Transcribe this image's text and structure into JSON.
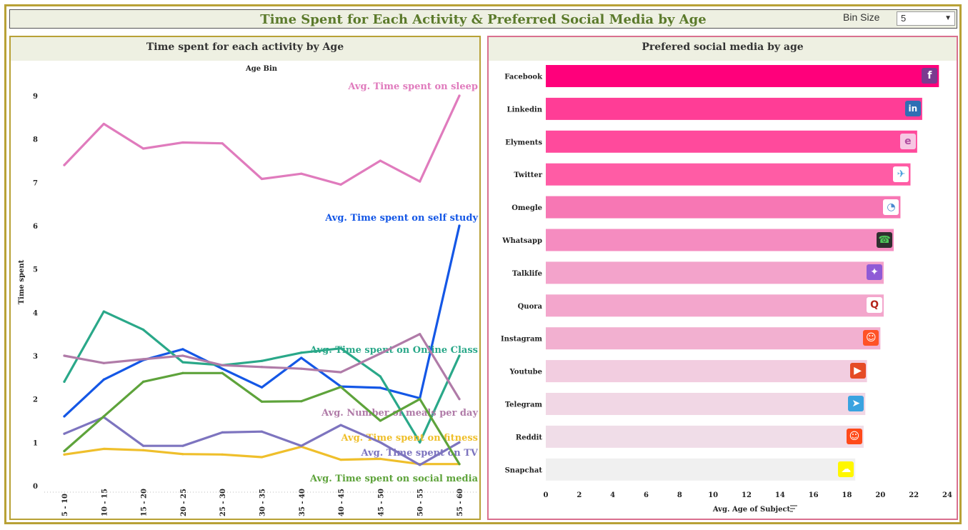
{
  "header": {
    "title": "Time Spent for Each Activity & Preferred Social Media by Age",
    "bin_label": "Bin Size",
    "bin_value": "5"
  },
  "chart_data": [
    {
      "type": "line",
      "title": "Time spent for each activity by Age",
      "top_label": "Age Bin",
      "ylabel": "Time spent",
      "ylim": [
        0,
        9
      ],
      "yticks": [
        0,
        1,
        2,
        3,
        4,
        5,
        6,
        7,
        8,
        9
      ],
      "categories": [
        "5 - 10",
        "10 - 15",
        "15 - 20",
        "20 - 25",
        "25 - 30",
        "30 - 35",
        "35 - 40",
        "40 - 45",
        "45 - 50",
        "50 - 55",
        "55 - 60"
      ],
      "series": [
        {
          "name": "Avg. Time spent on sleep",
          "color": "#e07bbd",
          "values": [
            7.4,
            8.35,
            7.78,
            7.92,
            7.9,
            7.08,
            7.2,
            6.95,
            7.5,
            7.02,
            9.0
          ]
        },
        {
          "name": "Avg. Time spent on self study",
          "color": "#1457e6",
          "values": [
            1.6,
            2.45,
            2.9,
            3.15,
            2.7,
            2.27,
            2.95,
            2.29,
            2.26,
            2.02,
            6.0
          ]
        },
        {
          "name": "Avg. Time spent on Online Class",
          "color": "#2aa889",
          "values": [
            2.4,
            4.02,
            3.6,
            2.85,
            2.78,
            2.88,
            3.07,
            3.17,
            2.52,
            1.0,
            3.0
          ]
        },
        {
          "name": "Avg. Number of meals per day",
          "color": "#b07ba8",
          "values": [
            3.0,
            2.83,
            2.92,
            3.0,
            2.78,
            2.74,
            2.7,
            2.62,
            3.05,
            3.5,
            2.0
          ]
        },
        {
          "name": "Avg. Time spent on fitness",
          "color": "#efbf2b",
          "values": [
            0.72,
            0.85,
            0.82,
            0.73,
            0.72,
            0.66,
            0.9,
            0.6,
            0.62,
            0.5,
            0.5
          ]
        },
        {
          "name": "Avg. Time spent on TV",
          "color": "#7d74bf",
          "values": [
            1.2,
            1.58,
            0.92,
            0.92,
            1.23,
            1.25,
            0.92,
            1.4,
            1.0,
            0.48,
            1.0
          ]
        },
        {
          "name": "Avg. Time spent on social media",
          "color": "#5ea33b",
          "values": [
            0.8,
            1.6,
            2.4,
            2.6,
            2.6,
            1.94,
            1.95,
            2.28,
            1.5,
            2.0,
            0.5
          ]
        }
      ]
    },
    {
      "type": "bar",
      "orientation": "horizontal",
      "title": "Prefered social media by age",
      "xlabel": "Avg. Age of Subject",
      "xlim": [
        0,
        24
      ],
      "xticks": [
        0,
        2,
        4,
        6,
        8,
        10,
        12,
        14,
        16,
        18,
        20,
        22,
        24
      ],
      "categories": [
        "Facebook",
        "Linkedin",
        "Elyments",
        "Twitter",
        "Omegle",
        "Whatsapp",
        "Talklife",
        "Quora",
        "Instagram",
        "Youtube",
        "Telegram",
        "Reddit",
        "Snapchat"
      ],
      "values": [
        23.5,
        22.5,
        22.2,
        21.8,
        21.2,
        20.8,
        20.2,
        20.2,
        20.0,
        19.2,
        19.1,
        19.0,
        18.5
      ],
      "bar_colors": [
        "#ff007b",
        "#ff3d96",
        "#ff4a9c",
        "#ff5ca5",
        "#f777b4",
        "#f58cc0",
        "#f3a3cb",
        "#f3a6cc",
        "#f2b0d0",
        "#f2cde0",
        "#f1d7e5",
        "#f0dde8",
        "#f0f0f0"
      ],
      "icons": [
        {
          "name": "facebook-icon",
          "glyph": "f",
          "bg": "#7a3b8f",
          "fg": "#ffffff"
        },
        {
          "name": "linkedin-icon",
          "glyph": "in",
          "bg": "#2f6fb4",
          "fg": "#ffffff"
        },
        {
          "name": "elyments-icon",
          "glyph": "e",
          "bg": "#f7c7e3",
          "fg": "#b04da0"
        },
        {
          "name": "twitter-icon",
          "glyph": "✈",
          "bg": "#ffffff",
          "fg": "#4a9fdd"
        },
        {
          "name": "omegle-icon",
          "glyph": "◔",
          "bg": "#ffffff",
          "fg": "#4a87d0"
        },
        {
          "name": "whatsapp-icon",
          "glyph": "☎",
          "bg": "#2f2f2f",
          "fg": "#4fc85a"
        },
        {
          "name": "talklife-icon",
          "glyph": "✦",
          "bg": "#8f5bd6",
          "fg": "#ffffff"
        },
        {
          "name": "quora-icon",
          "glyph": "Q",
          "bg": "#ffffff",
          "fg": "#b5261c"
        },
        {
          "name": "instagram-icon",
          "glyph": "☺",
          "bg": "#ff5227",
          "fg": "#ffffff"
        },
        {
          "name": "youtube-icon",
          "glyph": "▶",
          "bg": "#e54b26",
          "fg": "#ffffff"
        },
        {
          "name": "telegram-icon",
          "glyph": "➤",
          "bg": "#3aa3e0",
          "fg": "#ffffff"
        },
        {
          "name": "reddit-icon",
          "glyph": "☺",
          "bg": "#ff4a1a",
          "fg": "#ffffff"
        },
        {
          "name": "snapchat-icon",
          "glyph": "☁",
          "bg": "#fff700",
          "fg": "#ffffff"
        }
      ]
    }
  ]
}
